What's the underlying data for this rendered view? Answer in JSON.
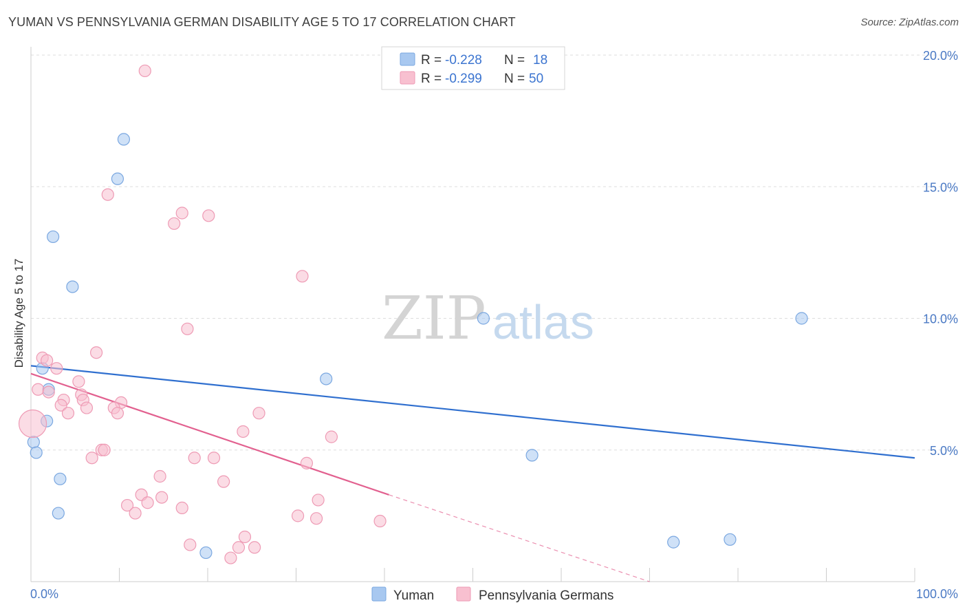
{
  "header": {
    "title": "YUMAN VS PENNSYLVANIA GERMAN DISABILITY AGE 5 TO 17 CORRELATION CHART",
    "source": "Source: ZipAtlas.com"
  },
  "watermark": {
    "zip": "ZIP",
    "atlas": "atlas"
  },
  "legend": {
    "rows": [
      {
        "r_label": "R = ",
        "r_value": "-0.228",
        "n_label": "N = ",
        "n_value": "18"
      },
      {
        "r_label": "R = ",
        "r_value": "-0.299",
        "n_label": "N = ",
        "n_value": "50"
      }
    ]
  },
  "bottom_legend": {
    "series1": "Yuman",
    "series2": "Pennsylvania Germans"
  },
  "chart_data": {
    "type": "scatter",
    "title": "YUMAN VS PENNSYLVANIA GERMAN DISABILITY AGE 5 TO 17 CORRELATION CHART",
    "xlabel": "",
    "ylabel": "Disability Age 5 to 17",
    "xlim": [
      0,
      100
    ],
    "ylim": [
      0,
      20
    ],
    "x_tick_labels": [
      "0.0%",
      "100.0%"
    ],
    "y_ticks": [
      5,
      10,
      15,
      20
    ],
    "y_tick_labels": [
      "5.0%",
      "10.0%",
      "15.0%",
      "20.0%"
    ],
    "grid": true,
    "series": [
      {
        "name": "Yuman",
        "color": "#a8c8f0",
        "stroke": "#7aa7e0",
        "line_color": "#2f6fcf",
        "r": -0.228,
        "n": 18,
        "trend": {
          "x": [
            0,
            100
          ],
          "y": [
            8.2,
            4.7
          ]
        },
        "points": [
          [
            10.5,
            16.8
          ],
          [
            9.8,
            15.3
          ],
          [
            2.5,
            13.1
          ],
          [
            4.7,
            11.2
          ],
          [
            51.2,
            10.0
          ],
          [
            87.2,
            10.0
          ],
          [
            1.3,
            8.1
          ],
          [
            2.0,
            7.3
          ],
          [
            33.4,
            7.7
          ],
          [
            1.8,
            6.1
          ],
          [
            0.3,
            5.3
          ],
          [
            0.6,
            4.9
          ],
          [
            56.7,
            4.8
          ],
          [
            3.3,
            3.9
          ],
          [
            3.1,
            2.6
          ],
          [
            19.8,
            1.1
          ],
          [
            72.7,
            1.5
          ],
          [
            79.1,
            1.6
          ]
        ]
      },
      {
        "name": "Pennsylvania Germans",
        "color": "#f8c0d0",
        "stroke": "#ee9ab4",
        "line_color": "#e2608f",
        "r": -0.299,
        "n": 50,
        "trend": {
          "x": [
            0,
            40.5
          ],
          "y": [
            7.9,
            3.3
          ]
        },
        "trend_dashed": {
          "x": [
            40.5,
            70
          ],
          "y": [
            3.3,
            0
          ]
        },
        "points": [
          [
            12.9,
            19.4
          ],
          [
            8.7,
            14.7
          ],
          [
            17.1,
            14.0
          ],
          [
            16.2,
            13.6
          ],
          [
            20.1,
            13.9
          ],
          [
            30.7,
            11.6
          ],
          [
            17.7,
            9.6
          ],
          [
            7.4,
            8.7
          ],
          [
            1.3,
            8.5
          ],
          [
            1.8,
            8.4
          ],
          [
            2.9,
            8.1
          ],
          [
            5.4,
            7.6
          ],
          [
            0.8,
            7.3
          ],
          [
            2.0,
            7.2
          ],
          [
            5.7,
            7.1
          ],
          [
            3.7,
            6.9
          ],
          [
            5.9,
            6.9
          ],
          [
            10.2,
            6.8
          ],
          [
            3.4,
            6.7
          ],
          [
            6.3,
            6.6
          ],
          [
            9.4,
            6.6
          ],
          [
            4.2,
            6.4
          ],
          [
            9.8,
            6.4
          ],
          [
            25.8,
            6.4
          ],
          [
            0.2,
            6.0
          ],
          [
            24.0,
            5.7
          ],
          [
            34.0,
            5.5
          ],
          [
            8.0,
            5.0
          ],
          [
            8.3,
            5.0
          ],
          [
            6.9,
            4.7
          ],
          [
            18.5,
            4.7
          ],
          [
            20.7,
            4.7
          ],
          [
            31.2,
            4.5
          ],
          [
            14.6,
            4.0
          ],
          [
            21.8,
            3.8
          ],
          [
            12.5,
            3.3
          ],
          [
            14.8,
            3.2
          ],
          [
            32.5,
            3.1
          ],
          [
            10.9,
            2.9
          ],
          [
            13.2,
            3.0
          ],
          [
            17.1,
            2.8
          ],
          [
            11.8,
            2.6
          ],
          [
            30.2,
            2.5
          ],
          [
            32.3,
            2.4
          ],
          [
            39.5,
            2.3
          ],
          [
            24.2,
            1.7
          ],
          [
            18.0,
            1.4
          ],
          [
            23.5,
            1.3
          ],
          [
            25.3,
            1.3
          ],
          [
            22.6,
            0.9
          ]
        ]
      }
    ]
  }
}
